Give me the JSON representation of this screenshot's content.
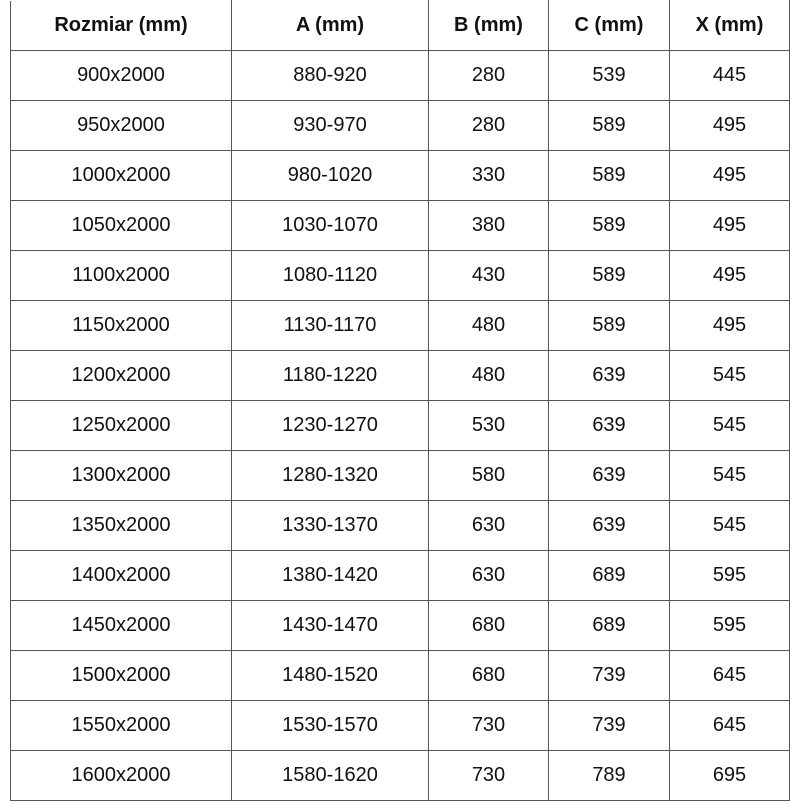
{
  "table": {
    "headers": [
      "Rozmiar (mm)",
      "A (mm)",
      "B (mm)",
      "C (mm)",
      "X (mm)"
    ],
    "rows": [
      [
        "900x2000",
        "880-920",
        "280",
        "539",
        "445"
      ],
      [
        "950x2000",
        "930-970",
        "280",
        "589",
        "495"
      ],
      [
        "1000x2000",
        "980-1020",
        "330",
        "589",
        "495"
      ],
      [
        "1050x2000",
        "1030-1070",
        "380",
        "589",
        "495"
      ],
      [
        "1100x2000",
        "1080-1120",
        "430",
        "589",
        "495"
      ],
      [
        "1150x2000",
        "1130-1170",
        "480",
        "589",
        "495"
      ],
      [
        "1200x2000",
        "1180-1220",
        "480",
        "639",
        "545"
      ],
      [
        "1250x2000",
        "1230-1270",
        "530",
        "639",
        "545"
      ],
      [
        "1300x2000",
        "1280-1320",
        "580",
        "639",
        "545"
      ],
      [
        "1350x2000",
        "1330-1370",
        "630",
        "639",
        "545"
      ],
      [
        "1400x2000",
        "1380-1420",
        "630",
        "689",
        "595"
      ],
      [
        "1450x2000",
        "1430-1470",
        "680",
        "689",
        "595"
      ],
      [
        "1500x2000",
        "1480-1520",
        "680",
        "739",
        "645"
      ],
      [
        "1550x2000",
        "1530-1570",
        "730",
        "739",
        "645"
      ],
      [
        "1600x2000",
        "1580-1620",
        "730",
        "789",
        "695"
      ]
    ]
  }
}
